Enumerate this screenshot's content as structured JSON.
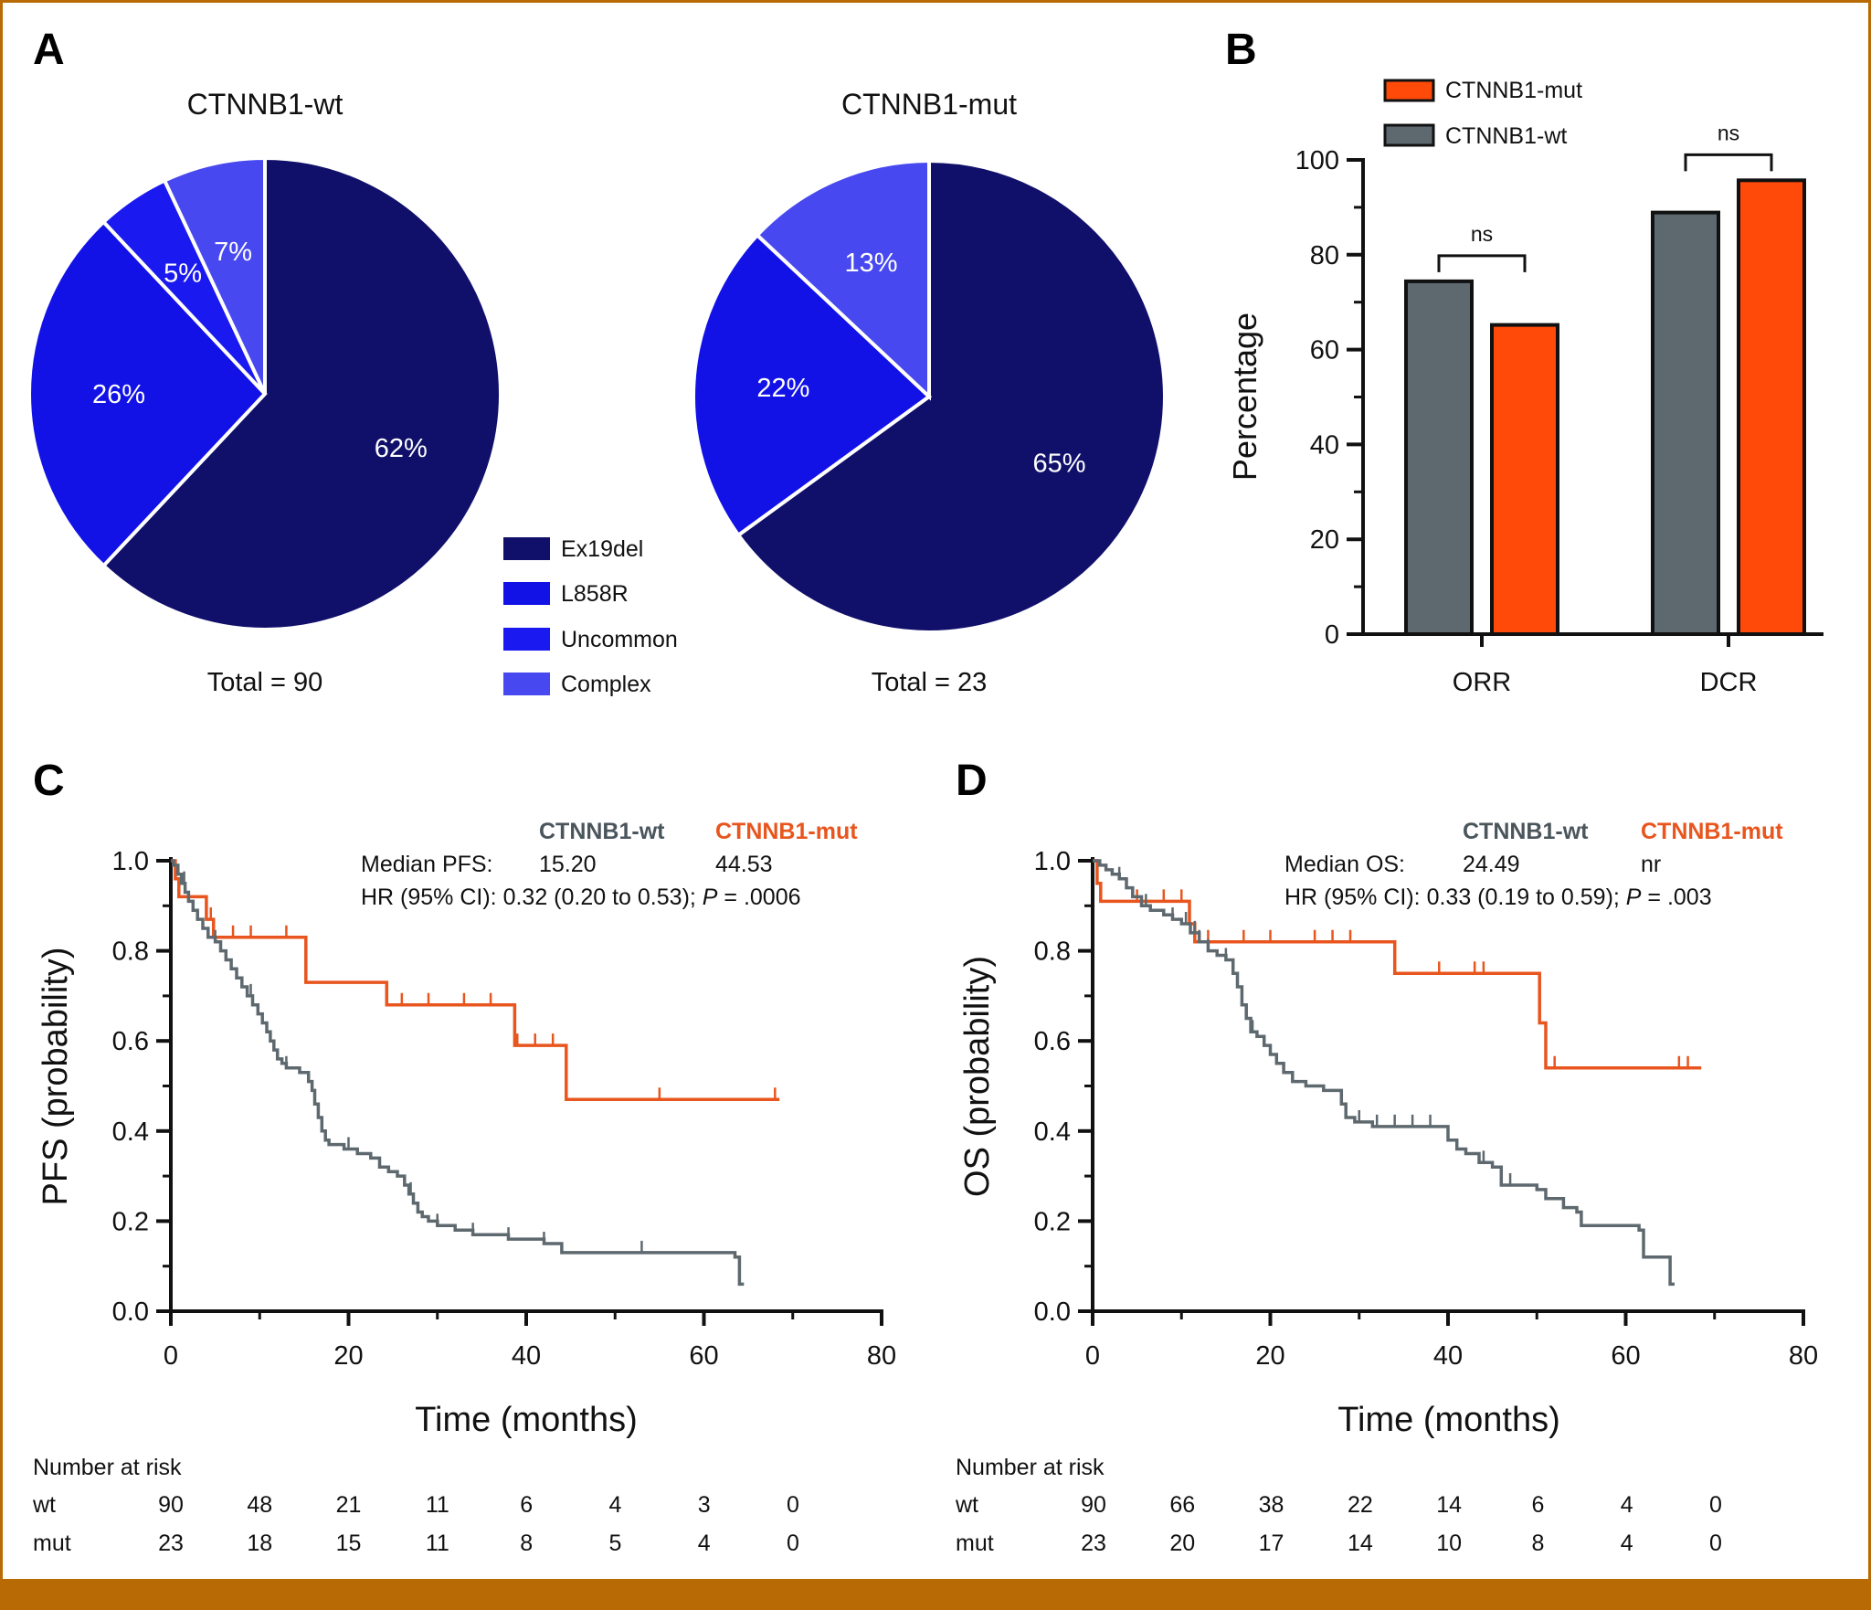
{
  "panels": {
    "a": {
      "letter": "A",
      "legend": [
        "Ex19del",
        "L858R",
        "Uncommon",
        "Complex"
      ]
    },
    "b": {
      "letter": "B"
    },
    "c": {
      "letter": "C",
      "risk_title": "Number at risk"
    },
    "d": {
      "letter": "D",
      "risk_title": "Number at risk"
    }
  },
  "colors": {
    "ex19del": "#10106B",
    "l858r": "#1212E6",
    "uncommon": "#1A1AF0",
    "complex": "#4848F0",
    "wt_bar": "#5E696F",
    "mut_bar": "#FF4A0A",
    "wt_km": "#5E696F",
    "mut_km": "#E8551E",
    "mut_text": "#E8551E",
    "wt_text": "#4A555C",
    "frame": "#B86A05"
  },
  "chart_data": [
    {
      "type": "pie",
      "panel": "A",
      "title": "CTNNB1-wt",
      "footer": "Total = 90",
      "categories": [
        "Ex19del",
        "L858R",
        "Uncommon",
        "Complex"
      ],
      "values": [
        62,
        26,
        5,
        7
      ],
      "labels": [
        "62%",
        "26%",
        "5%",
        "7%"
      ]
    },
    {
      "type": "pie",
      "panel": "A",
      "title": "CTNNB1-mut",
      "footer": "Total = 23",
      "categories": [
        "Ex19del",
        "L858R",
        "Complex"
      ],
      "values": [
        65,
        22,
        13
      ],
      "labels": [
        "65%",
        "22%",
        "13%"
      ]
    },
    {
      "type": "bar",
      "panel": "B",
      "categories": [
        "ORR",
        "DCR"
      ],
      "series": [
        {
          "name": "CTNNB1-wt",
          "values": [
            74.4,
            88.9
          ]
        },
        {
          "name": "CTNNB1-mut",
          "values": [
            65.2,
            95.7
          ]
        }
      ],
      "legend": [
        "CTNNB1-mut",
        "CTNNB1-wt"
      ],
      "ylabel": "Percentage",
      "ylim": [
        0,
        100
      ],
      "yticks": [
        "0",
        "20",
        "40",
        "60",
        "80",
        "100"
      ],
      "significance": [
        "ns",
        "ns"
      ]
    },
    {
      "type": "line",
      "panel": "C",
      "ylabel": "PFS (probability)",
      "xlabel": "Time (months)",
      "xlim": [
        0,
        80
      ],
      "ylim": [
        0,
        1
      ],
      "xticks": [
        "0",
        "20",
        "40",
        "60",
        "80"
      ],
      "yticks": [
        "0.0",
        "0.2",
        "0.4",
        "0.6",
        "0.8",
        "1.0"
      ],
      "header_wt": "CTNNB1-wt",
      "header_mut": "CTNNB1-mut",
      "median_label": "Median PFS:",
      "median_wt": "15.20",
      "median_mut": "44.53",
      "hr_text": "HR (95% CI): 0.32 (0.20 to 0.53); ",
      "p_label": "P",
      "p_text": " = .0006",
      "series": [
        {
          "name": "CTNNB1-wt",
          "steps": [
            [
              0,
              1.0
            ],
            [
              0.3,
              0.99
            ],
            [
              0.8,
              0.97
            ],
            [
              1.2,
              0.95
            ],
            [
              1.6,
              0.93
            ],
            [
              2.0,
              0.91
            ],
            [
              2.5,
              0.89
            ],
            [
              3.0,
              0.87
            ],
            [
              3.6,
              0.85
            ],
            [
              4.2,
              0.83
            ],
            [
              5.0,
              0.82
            ],
            [
              5.6,
              0.8
            ],
            [
              6.2,
              0.78
            ],
            [
              6.8,
              0.76
            ],
            [
              7.4,
              0.74
            ],
            [
              8.0,
              0.72
            ],
            [
              8.6,
              0.7
            ],
            [
              9.2,
              0.68
            ],
            [
              9.8,
              0.66
            ],
            [
              10.3,
              0.64
            ],
            [
              10.8,
              0.62
            ],
            [
              11.2,
              0.6
            ],
            [
              11.6,
              0.58
            ],
            [
              12.0,
              0.56
            ],
            [
              12.5,
              0.55
            ],
            [
              13.0,
              0.54
            ],
            [
              14.5,
              0.53
            ],
            [
              15.5,
              0.51
            ],
            [
              15.9,
              0.49
            ],
            [
              16.2,
              0.46
            ],
            [
              16.6,
              0.43
            ],
            [
              17.0,
              0.4
            ],
            [
              17.4,
              0.38
            ],
            [
              17.8,
              0.37
            ],
            [
              19.5,
              0.36
            ],
            [
              21.0,
              0.35
            ],
            [
              22.5,
              0.34
            ],
            [
              23.5,
              0.32
            ],
            [
              24.5,
              0.31
            ],
            [
              25.5,
              0.3
            ],
            [
              26.3,
              0.28
            ],
            [
              26.8,
              0.26
            ],
            [
              27.3,
              0.24
            ],
            [
              27.8,
              0.22
            ],
            [
              28.3,
              0.21
            ],
            [
              29.0,
              0.2
            ],
            [
              30.0,
              0.19
            ],
            [
              32.0,
              0.18
            ],
            [
              34.0,
              0.17
            ],
            [
              38.0,
              0.16
            ],
            [
              42.0,
              0.15
            ],
            [
              44.0,
              0.13
            ],
            [
              63.5,
              0.12
            ],
            [
              64.0,
              0.08
            ],
            [
              64.0,
              0.06
            ],
            [
              64.5,
              0.06
            ]
          ],
          "censored_x": [
            1.5,
            5,
            9,
            13,
            17,
            20,
            27,
            30,
            34,
            38,
            42,
            53
          ]
        },
        {
          "name": "CTNNB1-mut",
          "steps": [
            [
              0,
              1.0
            ],
            [
              0.5,
              0.96
            ],
            [
              0.9,
              0.92
            ],
            [
              4.0,
              0.87
            ],
            [
              4.8,
              0.83
            ],
            [
              15.2,
              0.73
            ],
            [
              24.3,
              0.68
            ],
            [
              38.7,
              0.59
            ],
            [
              44.5,
              0.47
            ],
            [
              68.5,
              0.47
            ]
          ],
          "censored_x": [
            4.5,
            7,
            9,
            13,
            26,
            29,
            33,
            36,
            39,
            41,
            43,
            55,
            68
          ]
        }
      ],
      "risk_rows": [
        {
          "label": "wt",
          "values": [
            "90",
            "48",
            "21",
            "11",
            "6",
            "4",
            "3",
            "0"
          ]
        },
        {
          "label": "mut",
          "values": [
            "23",
            "18",
            "15",
            "11",
            "8",
            "5",
            "4",
            "0"
          ]
        }
      ]
    },
    {
      "type": "line",
      "panel": "D",
      "ylabel": "OS (probability)",
      "xlabel": "Time (months)",
      "xlim": [
        0,
        80
      ],
      "ylim": [
        0,
        1
      ],
      "xticks": [
        "0",
        "20",
        "40",
        "60",
        "80"
      ],
      "yticks": [
        "0.0",
        "0.2",
        "0.4",
        "0.6",
        "0.8",
        "1.0"
      ],
      "header_wt": "CTNNB1-wt",
      "header_mut": "CTNNB1-mut",
      "median_label": "Median OS:",
      "median_wt": "24.49",
      "median_mut": "nr",
      "hr_text": "HR (95% CI): 0.33 (0.19 to 0.59); ",
      "p_label": "P",
      "p_text": " = .003",
      "series": [
        {
          "name": "CTNNB1-wt",
          "steps": [
            [
              0,
              1.0
            ],
            [
              0.8,
              0.99
            ],
            [
              1.5,
              0.98
            ],
            [
              2.2,
              0.97
            ],
            [
              3.0,
              0.96
            ],
            [
              3.8,
              0.94
            ],
            [
              4.5,
              0.92
            ],
            [
              5.5,
              0.9
            ],
            [
              6.5,
              0.89
            ],
            [
              8.0,
              0.88
            ],
            [
              9.0,
              0.87
            ],
            [
              10.0,
              0.86
            ],
            [
              11.0,
              0.84
            ],
            [
              12.0,
              0.82
            ],
            [
              13.0,
              0.8
            ],
            [
              14.0,
              0.79
            ],
            [
              15.0,
              0.78
            ],
            [
              15.8,
              0.75
            ],
            [
              16.3,
              0.72
            ],
            [
              16.8,
              0.68
            ],
            [
              17.3,
              0.65
            ],
            [
              17.8,
              0.62
            ],
            [
              18.5,
              0.61
            ],
            [
              19.3,
              0.59
            ],
            [
              20.0,
              0.57
            ],
            [
              20.7,
              0.55
            ],
            [
              21.5,
              0.53
            ],
            [
              22.5,
              0.51
            ],
            [
              24.0,
              0.5
            ],
            [
              26.0,
              0.49
            ],
            [
              28.0,
              0.46
            ],
            [
              28.5,
              0.43
            ],
            [
              29.5,
              0.42
            ],
            [
              31.5,
              0.41
            ],
            [
              40.0,
              0.38
            ],
            [
              41.0,
              0.36
            ],
            [
              42.0,
              0.35
            ],
            [
              43.5,
              0.33
            ],
            [
              45.0,
              0.32
            ],
            [
              46.0,
              0.28
            ],
            [
              50.0,
              0.27
            ],
            [
              51.0,
              0.25
            ],
            [
              53.0,
              0.23
            ],
            [
              54.5,
              0.22
            ],
            [
              55.0,
              0.19
            ],
            [
              61.5,
              0.18
            ],
            [
              62.0,
              0.12
            ],
            [
              65.0,
              0.06
            ],
            [
              65.5,
              0.06
            ]
          ],
          "censored_x": [
            3,
            6,
            9,
            10.5,
            11.5,
            12,
            13,
            15,
            18,
            30,
            32,
            34,
            36,
            38,
            44,
            47
          ]
        },
        {
          "name": "CTNNB1-mut",
          "steps": [
            [
              0,
              1.0
            ],
            [
              0.5,
              0.95
            ],
            [
              0.9,
              0.91
            ],
            [
              10.9,
              0.86
            ],
            [
              11.5,
              0.82
            ],
            [
              34.0,
              0.75
            ],
            [
              50.3,
              0.64
            ],
            [
              51.0,
              0.54
            ],
            [
              68.5,
              0.54
            ]
          ],
          "censored_x": [
            5,
            8,
            10,
            13,
            17,
            20,
            25,
            27,
            29,
            39,
            43,
            44,
            52,
            66,
            67
          ]
        }
      ],
      "risk_rows": [
        {
          "label": "wt",
          "values": [
            "90",
            "66",
            "38",
            "22",
            "14",
            "6",
            "4",
            "0"
          ]
        },
        {
          "label": "mut",
          "values": [
            "23",
            "20",
            "17",
            "14",
            "10",
            "8",
            "4",
            "0"
          ]
        }
      ]
    }
  ]
}
